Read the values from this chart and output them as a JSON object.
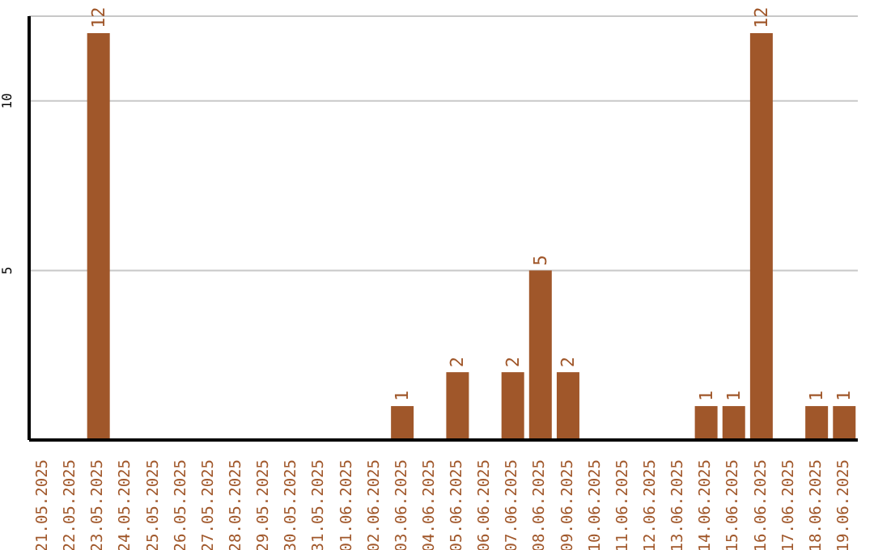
{
  "chart_data": {
    "type": "bar",
    "categories": [
      "21.05.2025",
      "22.05.2025",
      "23.05.2025",
      "24.05.2025",
      "25.05.2025",
      "26.05.2025",
      "27.05.2025",
      "28.05.2025",
      "29.05.2025",
      "30.05.2025",
      "31.05.2025",
      "01.06.2025",
      "02.06.2025",
      "03.06.2025",
      "04.06.2025",
      "05.06.2025",
      "06.06.2025",
      "07.06.2025",
      "08.06.2025",
      "09.06.2025",
      "10.06.2025",
      "11.06.2025",
      "12.06.2025",
      "13.06.2025",
      "14.06.2025",
      "15.06.2025",
      "16.06.2025",
      "17.06.2025",
      "18.06.2025",
      "19.06.2025"
    ],
    "values": [
      0,
      0,
      12,
      0,
      0,
      0,
      0,
      0,
      0,
      0,
      0,
      0,
      0,
      1,
      0,
      2,
      0,
      2,
      5,
      2,
      0,
      0,
      0,
      0,
      1,
      1,
      12,
      0,
      1,
      1
    ],
    "value_labels": [
      null,
      null,
      "12",
      null,
      null,
      null,
      null,
      null,
      null,
      null,
      null,
      null,
      null,
      "1",
      null,
      "2",
      null,
      "2",
      "5",
      "2",
      null,
      null,
      null,
      null,
      "1",
      "1",
      "12",
      null,
      "1",
      "1"
    ],
    "color": "#a0572a",
    "ylim": [
      0,
      12.5
    ],
    "yticks": [
      5,
      10
    ],
    "grid": "y"
  }
}
